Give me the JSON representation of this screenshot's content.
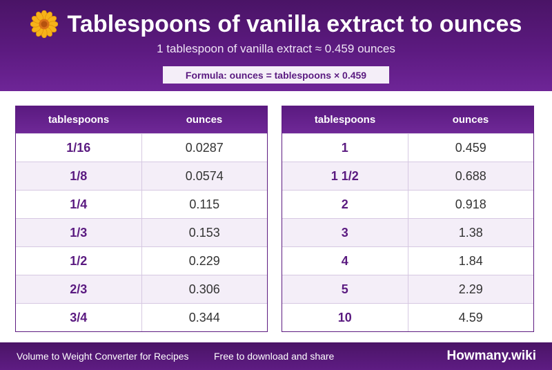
{
  "header": {
    "icon": "sunflower-icon",
    "title": "Tablespoons of vanilla extract to ounces",
    "subtitle": "1 tablespoon of vanilla extract ≈ 0.459 ounces",
    "formula": "Formula: ounces = tablespoons × 0.459"
  },
  "colors": {
    "primary": "#5c1a80",
    "row_alt": "#f4eef8"
  },
  "tables": {
    "left": {
      "columns": [
        "tablespoons",
        "ounces"
      ],
      "rows": [
        [
          "1/16",
          "0.0287"
        ],
        [
          "1/8",
          "0.0574"
        ],
        [
          "1/4",
          "0.115"
        ],
        [
          "1/3",
          "0.153"
        ],
        [
          "1/2",
          "0.229"
        ],
        [
          "2/3",
          "0.306"
        ],
        [
          "3/4",
          "0.344"
        ]
      ]
    },
    "right": {
      "columns": [
        "tablespoons",
        "ounces"
      ],
      "rows": [
        [
          "1",
          "0.459"
        ],
        [
          "1 1/2",
          "0.688"
        ],
        [
          "2",
          "0.918"
        ],
        [
          "3",
          "1.38"
        ],
        [
          "4",
          "1.84"
        ],
        [
          "5",
          "2.29"
        ],
        [
          "10",
          "4.59"
        ]
      ]
    }
  },
  "footer": {
    "left_text": "Volume to Weight Converter for Recipes",
    "middle_text": "Free to download and share",
    "brand": "Howmany.wiki"
  }
}
